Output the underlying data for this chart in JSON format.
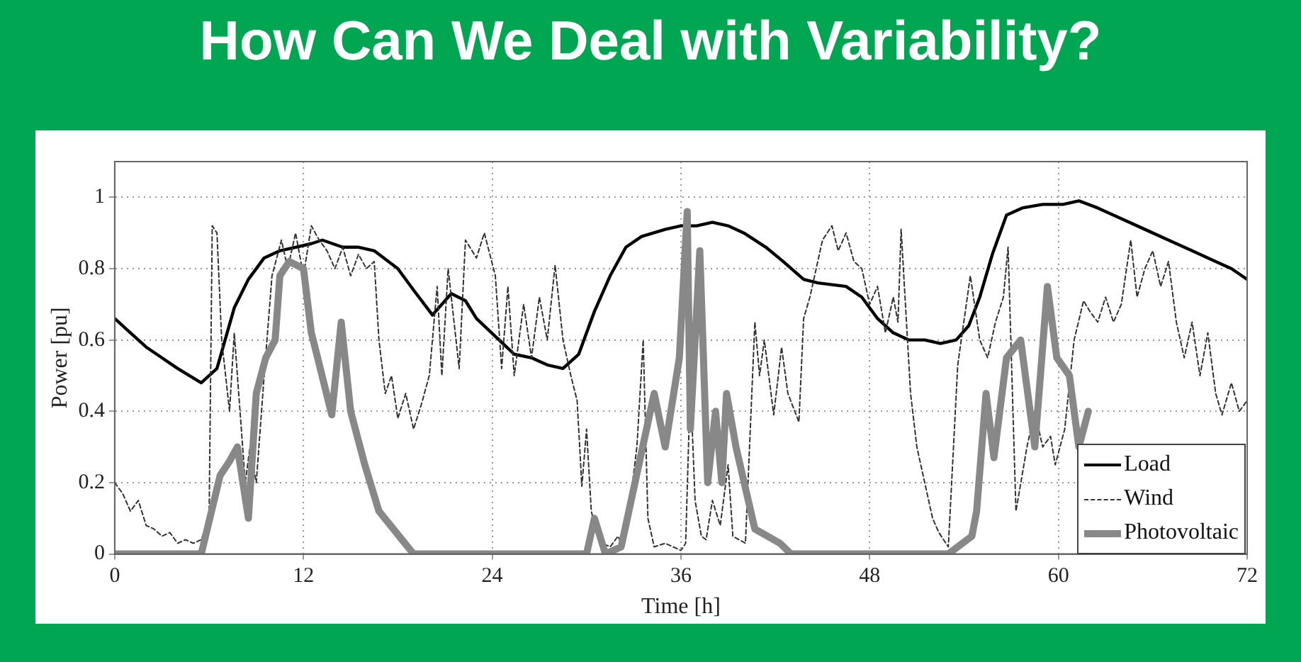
{
  "chart_data": {
    "type": "line",
    "title": "How Can We Deal with Variability?",
    "xlabel": "Time [h]",
    "ylabel": "Power [pu]",
    "xlim": [
      0,
      72
    ],
    "xticks": [
      0,
      12,
      24,
      36,
      48,
      60,
      72
    ],
    "ylim": [
      0,
      1.1
    ],
    "yticks": [
      0,
      0.2,
      0.4,
      0.6,
      0.8,
      1
    ],
    "grid": true,
    "legend": "bottom right",
    "series": [
      {
        "name": "Load",
        "color": "#000000",
        "line_style": "solid",
        "x": [
          0,
          1,
          2,
          3,
          4,
          5.5,
          6.5,
          7.6,
          8.5,
          9.5,
          10.5,
          11.5,
          12.5,
          13.2,
          14.5,
          15.5,
          16.5,
          18,
          19,
          20.2,
          21.4,
          22.3,
          23,
          24.2,
          25.4,
          26.5,
          27.5,
          28.5,
          29.5,
          30.5,
          31.5,
          32.5,
          33.5,
          35,
          36,
          37,
          38,
          39,
          40,
          41.4,
          42.5,
          43.8,
          44.7,
          46.5,
          47.5,
          48.5,
          49.5,
          50.5,
          51.5,
          52.5,
          53.5,
          54.3,
          55,
          55.8,
          56.7,
          57.7,
          59,
          60.3,
          61.3,
          62.5,
          64,
          65.5,
          67,
          68.5,
          70,
          71,
          72
        ],
        "values": [
          0.66,
          0.62,
          0.58,
          0.55,
          0.52,
          0.48,
          0.52,
          0.69,
          0.77,
          0.83,
          0.85,
          0.86,
          0.87,
          0.88,
          0.86,
          0.86,
          0.85,
          0.8,
          0.74,
          0.67,
          0.73,
          0.71,
          0.66,
          0.61,
          0.56,
          0.55,
          0.53,
          0.52,
          0.56,
          0.68,
          0.78,
          0.86,
          0.89,
          0.91,
          0.92,
          0.92,
          0.93,
          0.92,
          0.9,
          0.86,
          0.82,
          0.77,
          0.76,
          0.75,
          0.72,
          0.66,
          0.62,
          0.6,
          0.6,
          0.59,
          0.6,
          0.64,
          0.72,
          0.84,
          0.95,
          0.97,
          0.98,
          0.98,
          0.99,
          0.97,
          0.94,
          0.91,
          0.88,
          0.85,
          0.82,
          0.8,
          0.77
        ]
      },
      {
        "name": "Wind",
        "color": "#333333",
        "line_style": "dashed",
        "x": [
          0,
          0.5,
          1,
          1.5,
          2,
          2.5,
          3,
          3.5,
          4,
          4.5,
          5,
          5.5,
          6,
          6.2,
          6.5,
          6.8,
          7.3,
          7.6,
          8,
          8.3,
          8.6,
          9,
          9.5,
          10,
          10.6,
          11,
          11.5,
          12,
          12.5,
          13,
          13.5,
          14,
          14.5,
          15,
          15.5,
          16,
          16.5,
          16.8,
          17.2,
          17.6,
          18,
          18.5,
          19,
          19.5,
          20,
          20.5,
          20.8,
          21.2,
          21.9,
          22.3,
          23,
          23.5,
          24.2,
          24.6,
          25,
          25.4,
          26,
          26.5,
          27,
          27.5,
          28,
          28.5,
          29,
          29.4,
          29.7,
          30,
          30.3,
          30.7,
          31,
          31.5,
          32,
          32.3,
          32.7,
          33.2,
          33.6,
          33.9,
          34.3,
          35,
          35.5,
          36,
          36.3,
          36.6,
          36.9,
          37.3,
          37.6,
          38,
          38.5,
          39,
          39.3,
          40.1,
          40.7,
          41,
          41.3,
          41.9,
          42.4,
          42.8,
          43.5,
          43.8,
          44.2,
          44.6,
          45,
          45.6,
          46,
          46.5,
          47,
          47.5,
          48,
          48.5,
          49,
          49.5,
          49.8,
          50,
          50.6,
          51,
          51.5,
          52,
          52.4,
          53,
          53.6,
          54.4,
          55,
          55.5,
          56,
          56.5,
          56.8,
          57.3,
          58,
          58.5,
          59,
          59.5,
          59.8,
          60.4,
          61,
          61.6,
          62,
          62.5,
          63,
          63.5,
          64,
          64.6,
          65,
          65.5,
          66,
          66.5,
          67,
          67.5,
          68,
          68.5,
          69,
          69.5,
          70,
          70.4,
          71,
          71.5,
          72
        ],
        "values": [
          0.2,
          0.17,
          0.12,
          0.15,
          0.08,
          0.07,
          0.05,
          0.06,
          0.03,
          0.04,
          0.03,
          0.04,
          0.1,
          0.92,
          0.9,
          0.6,
          0.4,
          0.62,
          0.38,
          0.2,
          0.3,
          0.2,
          0.5,
          0.78,
          0.88,
          0.8,
          0.9,
          0.78,
          0.92,
          0.88,
          0.85,
          0.8,
          0.86,
          0.78,
          0.84,
          0.8,
          0.82,
          0.6,
          0.45,
          0.5,
          0.38,
          0.45,
          0.35,
          0.42,
          0.5,
          0.75,
          0.5,
          0.8,
          0.52,
          0.88,
          0.83,
          0.9,
          0.78,
          0.52,
          0.75,
          0.5,
          0.7,
          0.55,
          0.72,
          0.6,
          0.81,
          0.6,
          0.5,
          0.43,
          0.19,
          0.35,
          0.12,
          0.05,
          0.03,
          0.02,
          0.05,
          0.02,
          0.12,
          0.3,
          0.6,
          0.1,
          0.02,
          0.03,
          0.02,
          0.01,
          0.03,
          0.48,
          0.15,
          0.05,
          0.04,
          0.15,
          0.08,
          0.25,
          0.05,
          0.03,
          0.65,
          0.5,
          0.6,
          0.39,
          0.58,
          0.45,
          0.37,
          0.66,
          0.72,
          0.8,
          0.88,
          0.92,
          0.85,
          0.9,
          0.82,
          0.8,
          0.7,
          0.75,
          0.62,
          0.72,
          0.65,
          0.91,
          0.45,
          0.3,
          0.2,
          0.1,
          0.06,
          0.02,
          0.53,
          0.78,
          0.6,
          0.55,
          0.65,
          0.72,
          0.86,
          0.12,
          0.3,
          0.4,
          0.3,
          0.33,
          0.25,
          0.35,
          0.6,
          0.71,
          0.68,
          0.65,
          0.72,
          0.65,
          0.7,
          0.88,
          0.72,
          0.8,
          0.85,
          0.75,
          0.82,
          0.65,
          0.55,
          0.65,
          0.5,
          0.62,
          0.45,
          0.39,
          0.48,
          0.4,
          0.43
        ]
      },
      {
        "name": "Photovoltaic",
        "color": "#888888",
        "line_style": "solid",
        "x": [
          0,
          5.5,
          6.7,
          7.3,
          7.8,
          8.5,
          9,
          9.6,
          10.2,
          10.5,
          11.1,
          12,
          12.5,
          12.9,
          13.8,
          14.4,
          15,
          15.9,
          16.8,
          19,
          30,
          30.5,
          31.2,
          32.2,
          34.3,
          35,
          35.9,
          36.4,
          36.6,
          37.2,
          37.7,
          38.2,
          38.6,
          38.9,
          39.5,
          40.7,
          42.3,
          43,
          53,
          54.5,
          54.8,
          55.4,
          55.9,
          56.7,
          57.6,
          58.5,
          59.3,
          59.9,
          60.7,
          61.3,
          61.9
        ],
        "values": [
          0,
          0,
          0.22,
          0.26,
          0.3,
          0.1,
          0.45,
          0.55,
          0.6,
          0.78,
          0.82,
          0.8,
          0.62,
          0.55,
          0.39,
          0.65,
          0.4,
          0.25,
          0.12,
          0,
          0,
          0.1,
          0,
          0.02,
          0.45,
          0.3,
          0.55,
          0.96,
          0.35,
          0.85,
          0.2,
          0.4,
          0.2,
          0.45,
          0.3,
          0.07,
          0.03,
          0,
          0,
          0.05,
          0.12,
          0.45,
          0.27,
          0.55,
          0.6,
          0.3,
          0.75,
          0.55,
          0.5,
          0.3,
          0.4
        ]
      }
    ]
  }
}
